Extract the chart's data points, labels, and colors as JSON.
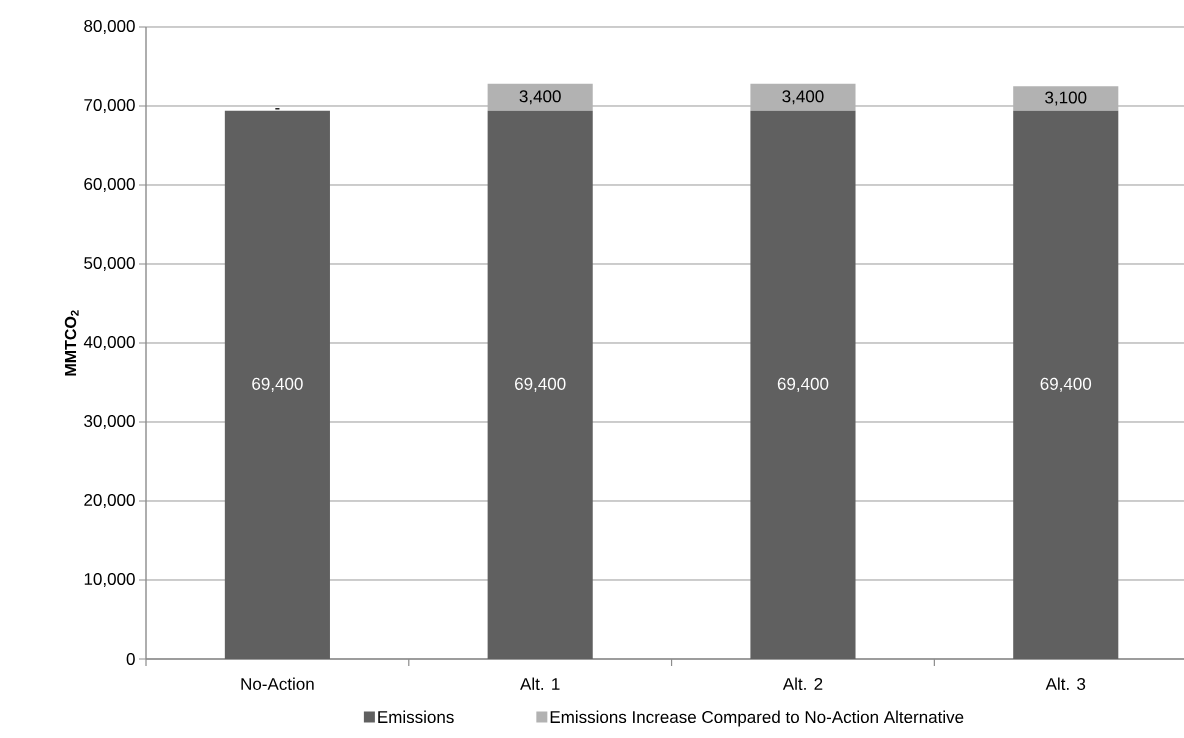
{
  "chart_data": {
    "type": "bar",
    "stacked": true,
    "ylabel": "MMTCO$_{2}$",
    "categories": [
      "No-Action",
      "Alt. 1",
      "Alt. 2",
      "Alt. 3"
    ],
    "series": [
      {
        "name": "Emissions",
        "color": "#606060",
        "values": [
          69400,
          69400,
          69400,
          69400
        ],
        "value_labels": [
          "69,400",
          "69,400",
          "69,400",
          "69,400"
        ]
      },
      {
        "name": "Emissions Increase Compared to No-Action Alternative",
        "color": "#b2b2b2",
        "values": [
          0,
          3400,
          3400,
          3100
        ],
        "value_labels": [
          "-",
          "3,400",
          "3,400",
          "3,100"
        ]
      }
    ],
    "ylim": [
      0,
      80000
    ],
    "yticks": [
      {
        "value": 0,
        "label": "0"
      },
      {
        "value": 10000,
        "label": "10,000"
      },
      {
        "value": 20000,
        "label": "20,000"
      },
      {
        "value": 30000,
        "label": "30,000"
      },
      {
        "value": 40000,
        "label": "40,000"
      },
      {
        "value": 50000,
        "label": "50,000"
      },
      {
        "value": 60000,
        "label": "60,000"
      },
      {
        "value": 70000,
        "label": "70,000"
      },
      {
        "value": 80000,
        "label": "80,000"
      }
    ],
    "grid": "y",
    "legend": "bottom"
  }
}
